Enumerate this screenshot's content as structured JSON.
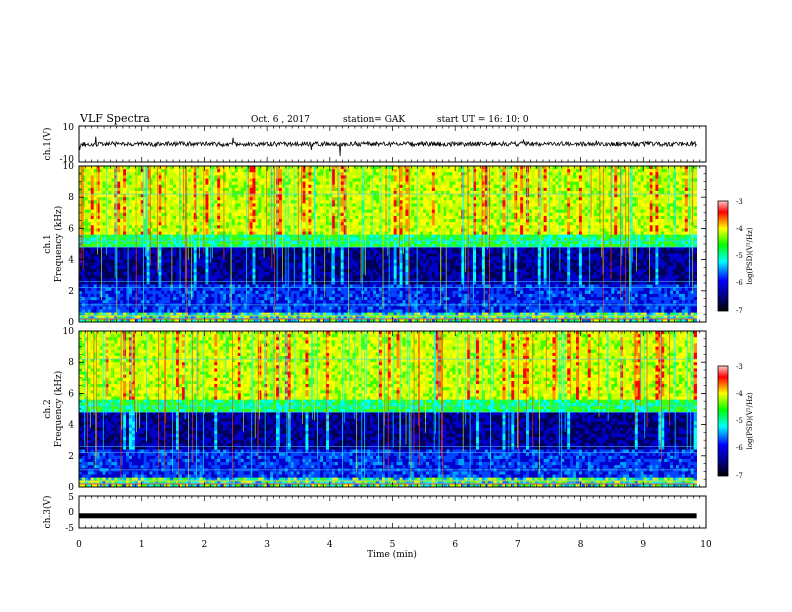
{
  "header": {
    "title": "VLF Spectra",
    "date": "Oct. 6 , 2017",
    "station": "station= GAK",
    "start_ut": "start UT = 16: 10: 0"
  },
  "chart_data": [
    {
      "type": "line",
      "panel": "ch1-waveform",
      "ylabel": "ch.1(V)",
      "ylim": [
        -10,
        10
      ],
      "yticks": [
        "10",
        "-10"
      ],
      "baseline": 0
    },
    {
      "type": "heatmap",
      "panel": "ch1-spectrogram",
      "ylabel": "ch.1",
      "ylabel2": "Frequency (kHz)",
      "ylim": [
        0,
        10
      ],
      "yticks": [
        "0",
        "2",
        "4",
        "6",
        "8",
        "10"
      ],
      "colorbar_label": "log(PSD)(V²/Hz)",
      "colorbar_ticks": [
        "-3",
        "-4",
        "-5",
        "-6",
        "-7"
      ],
      "colorbar_range": [
        -7,
        -3
      ]
    },
    {
      "type": "heatmap",
      "panel": "ch2-spectrogram",
      "ylabel": "ch.2",
      "ylabel2": "Frequency (kHz)",
      "ylim": [
        0,
        10
      ],
      "yticks": [
        "0",
        "2",
        "4",
        "6",
        "8",
        "10"
      ],
      "colorbar_label": "log(PSD)(V²/Hz)",
      "colorbar_ticks": [
        "-3",
        "-4",
        "-5",
        "-6",
        "-7"
      ],
      "colorbar_range": [
        -7,
        -3
      ]
    },
    {
      "type": "line",
      "panel": "ch3-waveform",
      "ylabel": "ch.3(V)",
      "ylim": [
        -5,
        5
      ],
      "yticks": [
        "5",
        "0",
        "-5"
      ],
      "baseline": -1.2
    }
  ],
  "xaxis": {
    "label": "Time (min)",
    "ticks": [
      "0",
      "1",
      "2",
      "3",
      "4",
      "5",
      "6",
      "7",
      "8",
      "9",
      "10"
    ],
    "range": [
      0,
      10
    ],
    "data_end": 9.85
  },
  "colors": {
    "axis": "#000000",
    "background": "#ffffff",
    "colormap": [
      "#000000",
      "#00008b",
      "#0000ff",
      "#00ffff",
      "#00ff00",
      "#ffff00",
      "#ff0000",
      "#ffc0c0"
    ]
  }
}
